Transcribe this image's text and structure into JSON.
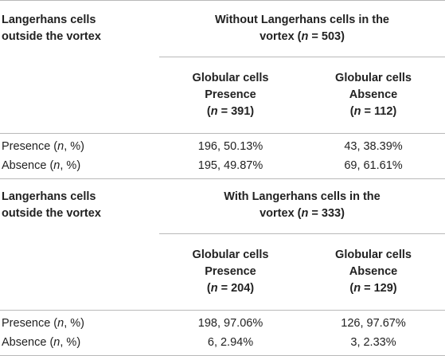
{
  "sections": [
    {
      "row_header": [
        "Langerhans cells",
        "outside the vortex"
      ],
      "group_header_line1": "Without Langerhans cells in the",
      "group_header_pre": "vortex (",
      "group_header_n_symbol": "n",
      "group_header_post": " = 503)",
      "subheaders": [
        {
          "line1": "Globular cells",
          "line2": "Presence",
          "n_pre": "(",
          "n_symbol": "n",
          "n_post": " = 391)"
        },
        {
          "line1": "Globular cells",
          "line2": "Absence",
          "n_pre": "(",
          "n_symbol": "n",
          "n_post": " = 112)"
        }
      ],
      "rows": [
        {
          "label_pre": "Presence (",
          "label_sym": "n",
          "label_post": ", %)",
          "values": [
            "196, 50.13%",
            "43, 38.39%"
          ]
        },
        {
          "label_pre": "Absence (",
          "label_sym": "n",
          "label_post": ", %)",
          "values": [
            "195, 49.87%",
            "69, 61.61%"
          ]
        }
      ]
    },
    {
      "row_header": [
        "Langerhans cells",
        "outside the vortex"
      ],
      "group_header_line1": "With Langerhans cells in the",
      "group_header_pre": "vortex (",
      "group_header_n_symbol": "n",
      "group_header_post": " = 333)",
      "subheaders": [
        {
          "line1": "Globular cells",
          "line2": "Presence",
          "n_pre": "(",
          "n_symbol": "n",
          "n_post": " = 204)"
        },
        {
          "line1": "Globular cells",
          "line2": "Absence",
          "n_pre": "(",
          "n_symbol": "n",
          "n_post": " = 129)"
        }
      ],
      "rows": [
        {
          "label_pre": "Presence (",
          "label_sym": "n",
          "label_post": ", %)",
          "values": [
            "198, 97.06%",
            "126, 97.67%"
          ]
        },
        {
          "label_pre": "Absence (",
          "label_sym": "n",
          "label_post": ", %)",
          "values": [
            "6, 2.94%",
            "3, 2.33%"
          ]
        }
      ]
    }
  ]
}
